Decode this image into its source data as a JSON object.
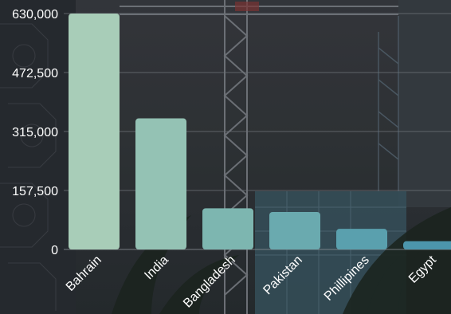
{
  "chart_data": {
    "type": "bar",
    "categories": [
      "Bahrain",
      "India",
      "Bangladesh",
      "Pakistan",
      "Phillipines",
      "Egypt"
    ],
    "values": [
      630000,
      350000,
      110000,
      100000,
      55000,
      22000
    ],
    "y_ticks": [
      0,
      157500,
      315000,
      472500,
      630000
    ],
    "y_tick_labels": [
      "0",
      "157,500",
      "315,000",
      "472,500",
      "630,000"
    ],
    "ylim": [
      0,
      630000
    ],
    "grid": true,
    "bar_colors": [
      "#a8cdb8",
      "#94c2b4",
      "#7db6b0",
      "#6aaaaf",
      "#5aa0ae",
      "#4c96ac"
    ],
    "background": "photo of construction cranes and palm trees"
  }
}
